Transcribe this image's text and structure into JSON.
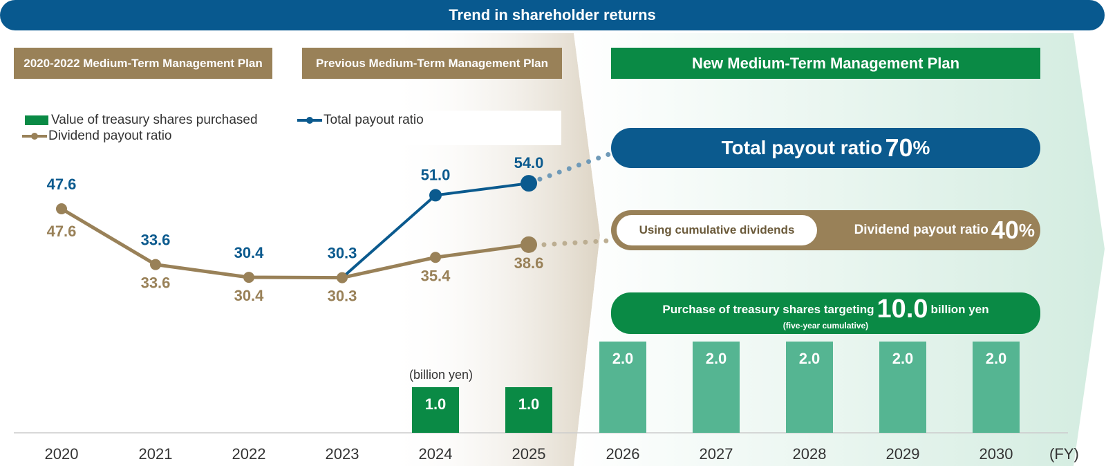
{
  "header": {
    "title": "Trend in shareholder returns"
  },
  "plans": {
    "plan1": "2020-2022 Medium-Term Management Plan",
    "plan2": "Previous Medium-Term Management Plan",
    "plan3": "New Medium-Term Management Plan"
  },
  "targets": {
    "total_label": "Total payout ratio",
    "total_value": "70",
    "total_unit": "%",
    "cumulative_label": "Using cumulative dividends",
    "dividend_label": "Dividend payout ratio",
    "dividend_value": "40",
    "dividend_unit": "%",
    "treasury_prefix": "Purchase of treasury shares targeting",
    "treasury_value": "10.0",
    "treasury_suffix": "billion yen",
    "treasury_note": "(five-year cumulative)"
  },
  "colors": {
    "blue": "#0b5a8e",
    "brown": "#998158",
    "green": "#0a8a45",
    "light_green": "#55b592"
  },
  "chart_data": {
    "type": "bar",
    "categories": [
      "2020",
      "2021",
      "2022",
      "2023",
      "2024",
      "2025",
      "2026",
      "2027",
      "2028",
      "2029",
      "2030"
    ],
    "unit_label": "(billion yen)",
    "x_unit": "(FY)",
    "legend": [
      "Value of treasury shares purchased",
      "Total payout ratio",
      "Dividend payout ratio"
    ],
    "series": [
      {
        "name": "Value of treasury shares purchased",
        "kind": "bar",
        "values": [
          null,
          null,
          null,
          null,
          1.0,
          1.0,
          2.0,
          2.0,
          2.0,
          2.0,
          2.0
        ]
      },
      {
        "name": "Total payout ratio",
        "kind": "line",
        "values": [
          47.6,
          33.6,
          30.4,
          30.3,
          51.0,
          54.0,
          null,
          null,
          null,
          null,
          null
        ]
      },
      {
        "name": "Dividend payout ratio",
        "kind": "line",
        "values": [
          47.6,
          33.6,
          30.4,
          30.3,
          35.4,
          38.6,
          null,
          null,
          null,
          null,
          null
        ]
      }
    ]
  }
}
